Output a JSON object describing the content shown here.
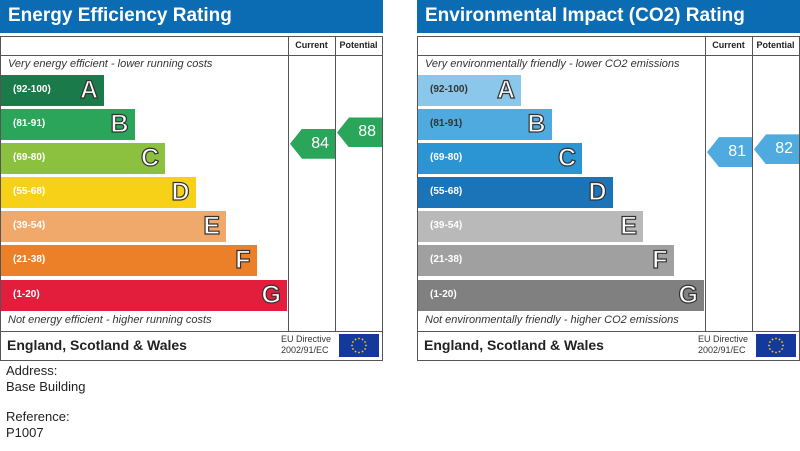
{
  "panels": [
    {
      "title": "Energy Efficiency Rating",
      "col_current": "Current",
      "col_potential": "Potential",
      "top_note": "Very energy efficient - lower running costs",
      "bottom_note": "Not energy efficient - higher running costs",
      "country": "England, Scotland & Wales",
      "eu_line1": "EU Directive",
      "eu_line2": "2002/91/EC",
      "bands": [
        {
          "range": "(92-100)",
          "letter": "A",
          "color": "#1a7a4a"
        },
        {
          "range": "(81-91)",
          "letter": "B",
          "color": "#2aa559"
        },
        {
          "range": "(69-80)",
          "letter": "C",
          "color": "#8cc03f"
        },
        {
          "range": "(55-68)",
          "letter": "D",
          "color": "#f7d117"
        },
        {
          "range": "(39-54)",
          "letter": "E",
          "color": "#f0a96a"
        },
        {
          "range": "(21-38)",
          "letter": "F",
          "color": "#ec8029"
        },
        {
          "range": "(1-20)",
          "letter": "G",
          "color": "#e31e3c"
        }
      ],
      "current": 84,
      "potential": 88,
      "current_color": "#2aa559",
      "potential_color": "#2aa559"
    },
    {
      "title": "Environmental Impact (CO2) Rating",
      "col_current": "Current",
      "col_potential": "Potential",
      "top_note": "Very environmentally friendly - lower CO2 emissions",
      "bottom_note": "Not environmentally friendly - higher CO2 emissions",
      "country": "England, Scotland & Wales",
      "eu_line1": "EU Directive",
      "eu_line2": "2002/91/EC",
      "bands": [
        {
          "range": "(92-100)",
          "letter": "A",
          "color": "#8ac7ea"
        },
        {
          "range": "(81-91)",
          "letter": "B",
          "color": "#4eaadf"
        },
        {
          "range": "(69-80)",
          "letter": "C",
          "color": "#2b95d3"
        },
        {
          "range": "(55-68)",
          "letter": "D",
          "color": "#1b74b8"
        },
        {
          "range": "(39-54)",
          "letter": "E",
          "color": "#b9b9b9"
        },
        {
          "range": "(21-38)",
          "letter": "F",
          "color": "#a0a0a0"
        },
        {
          "range": "(1-20)",
          "letter": "G",
          "color": "#808080"
        }
      ],
      "current": 81,
      "potential": 82,
      "current_color": "#4eaadf",
      "potential_color": "#4eaadf"
    }
  ],
  "address_label": "Address:",
  "address": "Base Building",
  "reference_label": "Reference:",
  "reference": "P1007"
}
